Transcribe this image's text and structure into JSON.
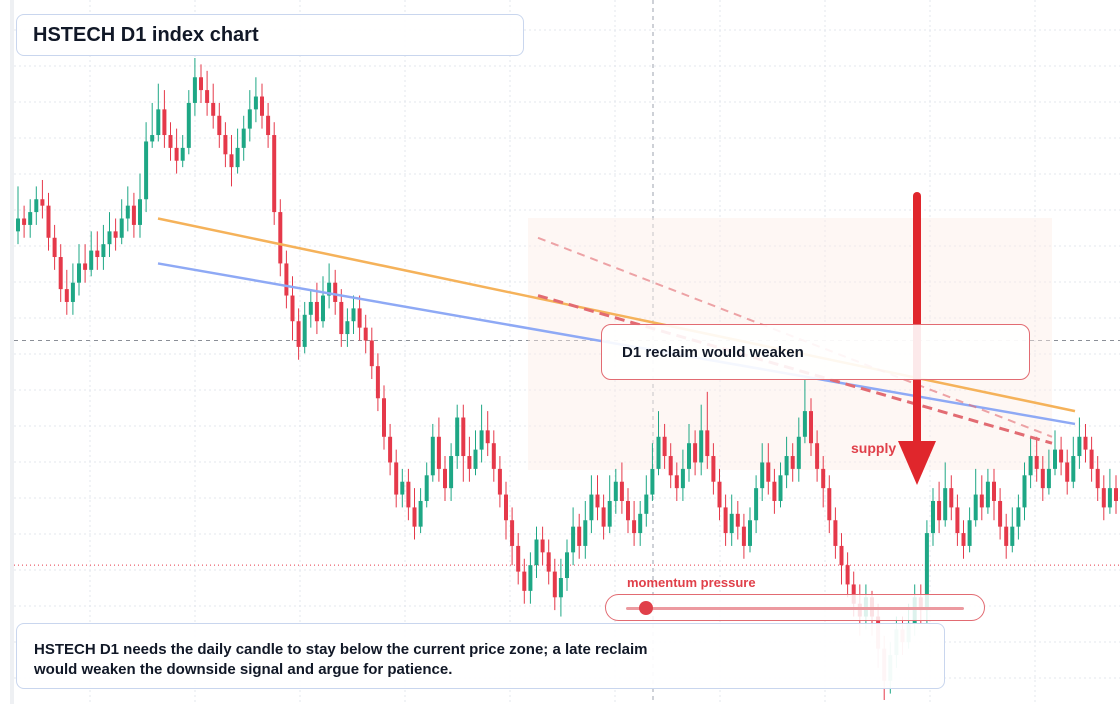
{
  "header": {
    "title": "HSTECH D1 index chart"
  },
  "note": {
    "text": "HSTECH D1 needs the daily candle to stay below the current price zone; a late reclaim would weaken the downside signal and argue for patience."
  },
  "callout": {
    "text": "D1 reclaim would weaken"
  },
  "labels": {
    "supply": "supply",
    "momentum": "momentum pressure"
  },
  "momentum": {
    "level": 0.06
  },
  "colors": {
    "up": "#1ea785",
    "down": "#e5394a",
    "trend_orange": "#f5b25a",
    "trend_blue": "#8ea9f5",
    "dashed_red": "#e26b72",
    "arrow_red": "#e0262c"
  },
  "chart_data": {
    "type": "candlestick",
    "title": "HSTECH D1 index chart",
    "xlabel": "",
    "ylabel": "",
    "grid": true,
    "note": "No price axis or tick labels are printed; values are on an arbitrary relative scale (higher = higher price).",
    "ylim": [
      0,
      100
    ],
    "candles": [
      [
        73,
        75,
        80,
        71
      ],
      [
        75,
        74,
        77,
        72
      ],
      [
        74,
        76,
        78,
        72
      ],
      [
        76,
        78,
        80,
        74
      ],
      [
        78,
        77,
        81,
        75
      ],
      [
        77,
        72,
        79,
        70
      ],
      [
        72,
        69,
        74,
        67
      ],
      [
        69,
        64,
        71,
        62
      ],
      [
        64,
        62,
        67,
        60
      ],
      [
        62,
        65,
        68,
        60
      ],
      [
        65,
        68,
        71,
        63
      ],
      [
        68,
        67,
        71,
        65
      ],
      [
        67,
        70,
        73,
        66
      ],
      [
        70,
        69,
        73,
        67
      ],
      [
        69,
        71,
        74,
        67
      ],
      [
        71,
        73,
        76,
        69
      ],
      [
        73,
        72,
        75,
        70
      ],
      [
        72,
        75,
        78,
        71
      ],
      [
        75,
        77,
        80,
        73
      ],
      [
        77,
        74,
        79,
        72
      ],
      [
        74,
        78,
        82,
        72
      ],
      [
        78,
        87,
        90,
        76
      ],
      [
        87,
        88,
        93,
        86
      ],
      [
        88,
        92,
        96,
        87
      ],
      [
        92,
        88,
        95,
        86
      ],
      [
        88,
        86,
        90,
        84
      ],
      [
        86,
        84,
        89,
        82
      ],
      [
        84,
        86,
        88,
        83
      ],
      [
        86,
        93,
        95,
        85
      ],
      [
        93,
        97,
        100,
        91
      ],
      [
        97,
        95,
        99,
        93
      ],
      [
        95,
        93,
        98,
        91
      ],
      [
        93,
        91,
        96,
        89
      ],
      [
        91,
        88,
        93,
        86
      ],
      [
        88,
        85,
        90,
        83
      ],
      [
        85,
        83,
        88,
        80
      ],
      [
        83,
        86,
        89,
        82
      ],
      [
        86,
        89,
        91,
        84
      ],
      [
        89,
        92,
        95,
        87
      ],
      [
        92,
        94,
        97,
        90
      ],
      [
        94,
        91,
        96,
        89
      ],
      [
        91,
        88,
        93,
        86
      ],
      [
        88,
        76,
        90,
        74
      ],
      [
        76,
        68,
        78,
        66
      ],
      [
        68,
        63,
        70,
        61
      ],
      [
        63,
        59,
        66,
        56
      ],
      [
        59,
        55,
        61,
        53
      ],
      [
        55,
        60,
        62,
        54
      ],
      [
        60,
        62,
        64,
        58
      ],
      [
        62,
        59,
        65,
        57
      ],
      [
        59,
        63,
        66,
        58
      ],
      [
        63,
        65,
        68,
        61
      ],
      [
        65,
        62,
        67,
        60
      ],
      [
        62,
        57,
        64,
        55
      ],
      [
        57,
        59,
        61,
        55
      ],
      [
        59,
        61,
        63,
        57
      ],
      [
        61,
        58,
        63,
        56
      ],
      [
        58,
        56,
        60,
        54
      ],
      [
        56,
        52,
        58,
        50
      ],
      [
        52,
        47,
        54,
        45
      ],
      [
        47,
        41,
        49,
        39
      ],
      [
        41,
        37,
        43,
        35
      ],
      [
        37,
        32,
        39,
        30
      ],
      [
        32,
        34,
        36,
        30
      ],
      [
        34,
        30,
        36,
        28
      ],
      [
        30,
        27,
        33,
        25
      ],
      [
        27,
        31,
        33,
        26
      ],
      [
        31,
        35,
        37,
        30
      ],
      [
        35,
        41,
        43,
        34
      ],
      [
        41,
        36,
        44,
        34
      ],
      [
        36,
        33,
        38,
        31
      ],
      [
        33,
        38,
        40,
        31
      ],
      [
        38,
        44,
        46,
        36
      ],
      [
        44,
        38,
        46,
        34
      ],
      [
        38,
        36,
        41,
        34
      ],
      [
        36,
        39,
        42,
        35
      ],
      [
        39,
        42,
        46,
        37
      ],
      [
        42,
        40,
        45,
        38
      ],
      [
        40,
        36,
        42,
        34
      ],
      [
        36,
        32,
        38,
        30
      ],
      [
        32,
        28,
        34,
        25
      ],
      [
        28,
        24,
        30,
        21
      ],
      [
        24,
        20,
        26,
        18
      ],
      [
        20,
        17,
        22,
        15
      ],
      [
        17,
        21,
        23,
        15
      ],
      [
        21,
        25,
        27,
        19
      ],
      [
        25,
        23,
        27,
        21
      ],
      [
        23,
        20,
        25,
        18
      ],
      [
        20,
        16,
        22,
        14
      ],
      [
        16,
        19,
        22,
        13
      ],
      [
        19,
        23,
        25,
        17
      ],
      [
        23,
        27,
        30,
        21
      ],
      [
        27,
        24,
        29,
        22
      ],
      [
        24,
        28,
        31,
        22
      ],
      [
        28,
        32,
        35,
        26
      ],
      [
        32,
        30,
        35,
        28
      ],
      [
        30,
        27,
        32,
        25
      ],
      [
        27,
        31,
        35,
        26
      ],
      [
        31,
        34,
        36,
        29
      ],
      [
        34,
        31,
        37,
        29
      ],
      [
        31,
        28,
        33,
        26
      ],
      [
        28,
        26,
        31,
        24
      ],
      [
        26,
        29,
        31,
        24
      ],
      [
        29,
        32,
        35,
        27
      ],
      [
        32,
        36,
        40,
        31
      ],
      [
        36,
        41,
        45,
        35
      ],
      [
        41,
        38,
        43,
        36
      ],
      [
        38,
        35,
        40,
        33
      ],
      [
        35,
        33,
        37,
        31
      ],
      [
        33,
        36,
        39,
        31
      ],
      [
        36,
        40,
        43,
        34
      ],
      [
        40,
        37,
        42,
        35
      ],
      [
        37,
        42,
        46,
        35
      ],
      [
        42,
        38,
        48,
        36
      ],
      [
        38,
        34,
        40,
        32
      ],
      [
        34,
        30,
        36,
        28
      ],
      [
        30,
        26,
        32,
        24
      ],
      [
        26,
        29,
        32,
        24
      ],
      [
        29,
        27,
        31,
        25
      ],
      [
        27,
        24,
        29,
        22
      ],
      [
        24,
        28,
        30,
        23
      ],
      [
        28,
        33,
        35,
        26
      ],
      [
        33,
        37,
        40,
        31
      ],
      [
        37,
        34,
        40,
        32
      ],
      [
        34,
        31,
        36,
        29
      ],
      [
        31,
        35,
        37,
        30
      ],
      [
        35,
        38,
        41,
        33
      ],
      [
        38,
        36,
        40,
        34
      ],
      [
        36,
        41,
        44,
        34
      ],
      [
        41,
        45,
        50,
        40
      ],
      [
        45,
        40,
        47,
        38
      ],
      [
        40,
        36,
        42,
        34
      ],
      [
        36,
        33,
        38,
        30
      ],
      [
        33,
        28,
        35,
        26
      ],
      [
        28,
        24,
        30,
        22
      ],
      [
        24,
        21,
        26,
        18
      ],
      [
        21,
        18,
        23,
        16
      ],
      [
        18,
        15,
        20,
        13
      ],
      [
        15,
        13,
        18,
        10
      ],
      [
        13,
        16,
        18,
        11
      ],
      [
        16,
        13,
        17,
        10
      ],
      [
        13,
        8,
        15,
        5
      ],
      [
        8,
        3,
        10,
        0
      ],
      [
        3,
        7,
        9,
        1
      ],
      [
        7,
        11,
        13,
        5
      ],
      [
        11,
        9,
        13,
        7
      ],
      [
        9,
        12,
        15,
        8
      ],
      [
        12,
        16,
        18,
        10
      ],
      [
        16,
        14,
        18,
        12
      ],
      [
        14,
        26,
        28,
        12
      ],
      [
        26,
        31,
        33,
        24
      ],
      [
        31,
        28,
        34,
        26
      ],
      [
        28,
        33,
        37,
        27
      ],
      [
        33,
        30,
        35,
        28
      ],
      [
        30,
        26,
        32,
        24
      ],
      [
        26,
        24,
        28,
        22
      ],
      [
        24,
        28,
        30,
        23
      ],
      [
        28,
        32,
        36,
        27
      ],
      [
        32,
        30,
        35,
        28
      ],
      [
        30,
        34,
        36,
        29
      ],
      [
        34,
        31,
        36,
        28
      ],
      [
        31,
        27,
        33,
        25
      ],
      [
        27,
        24,
        29,
        22
      ],
      [
        24,
        27,
        30,
        23
      ],
      [
        27,
        30,
        32,
        25
      ],
      [
        30,
        35,
        37,
        28
      ],
      [
        35,
        38,
        41,
        33
      ],
      [
        38,
        36,
        41,
        34
      ],
      [
        36,
        33,
        38,
        31
      ],
      [
        33,
        36,
        39,
        32
      ],
      [
        36,
        39,
        42,
        35
      ],
      [
        39,
        37,
        41,
        35
      ],
      [
        37,
        34,
        39,
        32
      ],
      [
        34,
        38,
        41,
        33
      ],
      [
        38,
        41,
        44,
        36
      ],
      [
        41,
        39,
        43,
        37
      ],
      [
        39,
        36,
        41,
        34
      ],
      [
        36,
        33,
        38,
        31
      ],
      [
        33,
        30,
        35,
        28
      ],
      [
        30,
        33,
        36,
        29
      ],
      [
        33,
        31,
        35,
        29
      ],
      [
        31,
        28,
        33,
        26
      ],
      [
        28,
        25,
        30,
        23
      ],
      [
        25,
        23,
        27,
        21
      ],
      [
        23,
        21,
        25,
        19
      ]
    ],
    "candle_fields": [
      "open",
      "close",
      "high",
      "low"
    ],
    "trendlines": [
      {
        "from": [
          0,
          75
        ],
        "to": [
          178,
          45
        ],
        "color": "orange"
      },
      {
        "from": [
          0,
          68
        ],
        "to": [
          178,
          43
        ],
        "color": "blue"
      }
    ],
    "resistance_dashed": [
      {
        "from": [
          63,
          72
        ],
        "to": [
          164,
          41
        ]
      },
      {
        "from": [
          63,
          63
        ],
        "to": [
          164,
          40
        ]
      }
    ],
    "reference_lines": {
      "current_price_dashed": 56,
      "support_dotted": 21
    },
    "annotations": [
      "D1 reclaim would weaken",
      "supply",
      "momentum pressure"
    ]
  }
}
